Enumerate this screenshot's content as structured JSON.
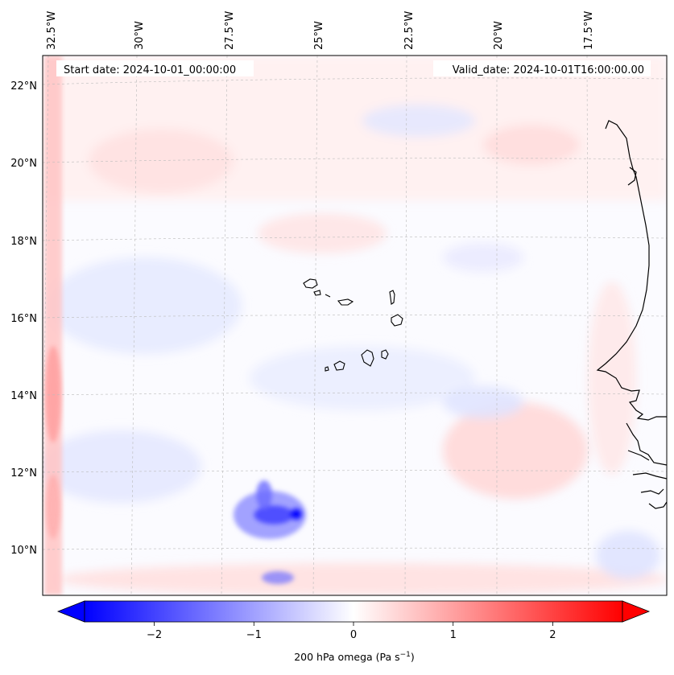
{
  "map": {
    "start_date": "Start date: 2024-10-01_00:00:00",
    "valid_date": "Valid_date: 2024-10-01T16:00:00.00",
    "lon_labels": [
      "32.5°W",
      "30°W",
      "27.5°W",
      "25°W",
      "22.5°W",
      "20°W",
      "17.5°W"
    ],
    "lat_labels": [
      "22°N",
      "20°N",
      "18°N",
      "16°N",
      "14°N",
      "12°N",
      "10°N"
    ],
    "field": "200 hPa omega",
    "features": [
      "Cape Verde islands",
      "West African coastline"
    ]
  },
  "colorbar": {
    "label": "200 hPa omega (Pa s",
    "label_sup": "−1",
    "label_end": ")",
    "ticks": [
      "−2",
      "−1",
      "0",
      "1",
      "2"
    ],
    "tick_values": [
      -2,
      -1,
      0,
      1,
      2
    ],
    "range": [
      -2.7,
      2.7
    ],
    "colormap": "bwr",
    "color_low": "#0000ff",
    "color_mid": "#ffffff",
    "color_high": "#ff0000"
  }
}
